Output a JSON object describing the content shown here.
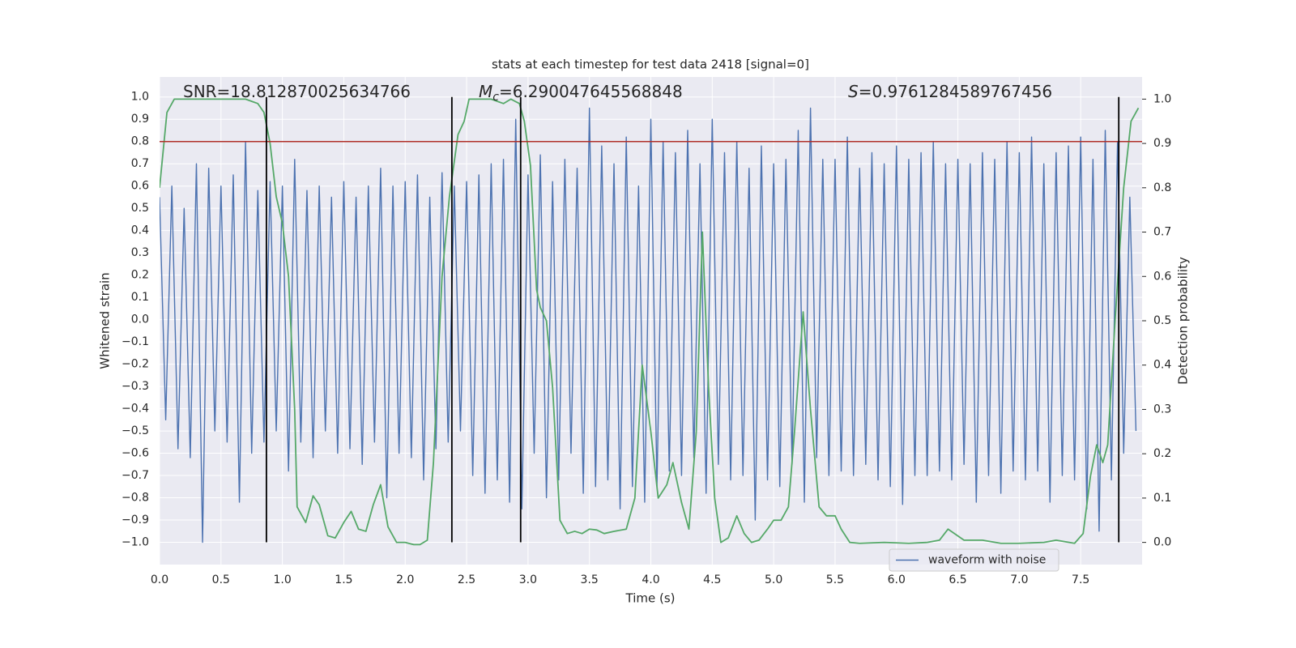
{
  "chart_data": {
    "type": "line",
    "title": "stats at each timestep for test data 2418 [signal=0]",
    "xlabel": "Time (s)",
    "ylabel": "Whitened strain",
    "y2label": "Detection probability",
    "annotations": [
      {
        "text": "SNR=18.812870025634766"
      },
      {
        "symbol": "M",
        "subscript": "c",
        "text": "=6.290047645568848"
      },
      {
        "symbol": "S",
        "text": "=0.9761284589767456"
      }
    ],
    "xlim": [
      0,
      8
    ],
    "ylim": [
      -1.1,
      1.09
    ],
    "y2lim": [
      -0.05,
      1.05
    ],
    "xticks": [
      {
        "value": 0,
        "label": "0.0"
      },
      {
        "value": 0.5,
        "label": "0.5"
      },
      {
        "value": 1,
        "label": "1.0"
      },
      {
        "value": 1.5,
        "label": "1.5"
      },
      {
        "value": 2,
        "label": "2.0"
      },
      {
        "value": 2.5,
        "label": "2.5"
      },
      {
        "value": 3,
        "label": "3.0"
      },
      {
        "value": 3.5,
        "label": "3.5"
      },
      {
        "value": 4,
        "label": "4.0"
      },
      {
        "value": 4.5,
        "label": "4.5"
      },
      {
        "value": 5,
        "label": "5.0"
      },
      {
        "value": 5.5,
        "label": "5.5"
      },
      {
        "value": 6,
        "label": "6.0"
      },
      {
        "value": 6.5,
        "label": "6.5"
      },
      {
        "value": 7,
        "label": "7.0"
      },
      {
        "value": 7.5,
        "label": "7.5"
      }
    ],
    "yticks": [
      {
        "value": -1,
        "label": "−1.0"
      },
      {
        "value": -0.9,
        "label": "−0.9"
      },
      {
        "value": -0.8,
        "label": "−0.8"
      },
      {
        "value": -0.7,
        "label": "−0.7"
      },
      {
        "value": -0.6,
        "label": "−0.6"
      },
      {
        "value": -0.5,
        "label": "−0.5"
      },
      {
        "value": -0.4,
        "label": "−0.4"
      },
      {
        "value": -0.3,
        "label": "−0.3"
      },
      {
        "value": -0.2,
        "label": "−0.2"
      },
      {
        "value": -0.1,
        "label": "−0.1"
      },
      {
        "value": 0,
        "label": "0.0"
      },
      {
        "value": 0.1,
        "label": "0.1"
      },
      {
        "value": 0.2,
        "label": "0.2"
      },
      {
        "value": 0.3,
        "label": "0.3"
      },
      {
        "value": 0.4,
        "label": "0.4"
      },
      {
        "value": 0.5,
        "label": "0.5"
      },
      {
        "value": 0.6,
        "label": "0.6"
      },
      {
        "value": 0.7,
        "label": "0.7"
      },
      {
        "value": 0.8,
        "label": "0.8"
      },
      {
        "value": 0.9,
        "label": "0.9"
      },
      {
        "value": 1,
        "label": "1.0"
      }
    ],
    "y2ticks": [
      {
        "value": 0,
        "label": "0.0"
      },
      {
        "value": 0.1,
        "label": "0.1"
      },
      {
        "value": 0.2,
        "label": "0.2"
      },
      {
        "value": 0.3,
        "label": "0.3"
      },
      {
        "value": 0.4,
        "label": "0.4"
      },
      {
        "value": 0.5,
        "label": "0.5"
      },
      {
        "value": 0.6,
        "label": "0.6"
      },
      {
        "value": 0.7,
        "label": "0.7"
      },
      {
        "value": 0.8,
        "label": "0.8"
      },
      {
        "value": 0.9,
        "label": "0.9"
      },
      {
        "value": 1,
        "label": "1.0"
      }
    ],
    "grid": true,
    "legend": "lower right",
    "hline": {
      "value": 0.8,
      "color": "#b0302a"
    },
    "vlines": {
      "x": [
        0.87,
        2.38,
        2.94,
        7.81
      ],
      "ymin": -1,
      "ymax": 1,
      "color": "#000000"
    },
    "series": [
      {
        "name": "waveform with noise",
        "color": "#4c72b0",
        "x": [
          0,
          0.05,
          0.1,
          0.15,
          0.2,
          0.25,
          0.3,
          0.35,
          0.4,
          0.45,
          0.5,
          0.55,
          0.6,
          0.65,
          0.7,
          0.75,
          0.8,
          0.85,
          0.9,
          0.95,
          1.0,
          1.05,
          1.1,
          1.15,
          1.2,
          1.25,
          1.3,
          1.35,
          1.4,
          1.45,
          1.5,
          1.55,
          1.6,
          1.65,
          1.7,
          1.75,
          1.8,
          1.85,
          1.9,
          1.95,
          2.0,
          2.05,
          2.1,
          2.15,
          2.2,
          2.25,
          2.3,
          2.35,
          2.4,
          2.45,
          2.5,
          2.55,
          2.6,
          2.65,
          2.7,
          2.75,
          2.8,
          2.85,
          2.9,
          2.95,
          3.0,
          3.05,
          3.1,
          3.15,
          3.2,
          3.25,
          3.3,
          3.35,
          3.4,
          3.45,
          3.5,
          3.55,
          3.6,
          3.65,
          3.7,
          3.75,
          3.8,
          3.85,
          3.9,
          3.95,
          4.0,
          4.05,
          4.1,
          4.15,
          4.2,
          4.25,
          4.3,
          4.35,
          4.4,
          4.45,
          4.5,
          4.55,
          4.6,
          4.65,
          4.7,
          4.75,
          4.8,
          4.85,
          4.9,
          4.95,
          5.0,
          5.05,
          5.1,
          5.15,
          5.2,
          5.25,
          5.3,
          5.35,
          5.4,
          5.45,
          5.5,
          5.55,
          5.6,
          5.65,
          5.7,
          5.75,
          5.8,
          5.85,
          5.9,
          5.95,
          6.0,
          6.05,
          6.1,
          6.15,
          6.2,
          6.25,
          6.3,
          6.35,
          6.4,
          6.45,
          6.5,
          6.55,
          6.6,
          6.65,
          6.7,
          6.75,
          6.8,
          6.85,
          6.9,
          6.95,
          7.0,
          7.05,
          7.1,
          7.15,
          7.2,
          7.25,
          7.3,
          7.35,
          7.4,
          7.45,
          7.5,
          7.55,
          7.6,
          7.65,
          7.7,
          7.75,
          7.8,
          7.85,
          7.9,
          7.95
        ],
        "values": [
          0.55,
          -0.45,
          0.6,
          -0.58,
          0.5,
          -0.62,
          0.7,
          -1.0,
          0.68,
          -0.5,
          0.6,
          -0.55,
          0.65,
          -0.82,
          0.8,
          -0.6,
          0.58,
          -0.55,
          0.62,
          -0.5,
          0.6,
          -0.68,
          0.72,
          -0.55,
          0.58,
          -0.62,
          0.6,
          -0.5,
          0.55,
          -0.6,
          0.62,
          -0.58,
          0.55,
          -0.65,
          0.6,
          -0.55,
          0.68,
          -0.8,
          0.6,
          -0.6,
          0.62,
          -0.62,
          0.65,
          -0.72,
          0.55,
          -0.58,
          0.66,
          -0.55,
          0.6,
          -0.5,
          0.62,
          -0.7,
          0.65,
          -0.78,
          0.7,
          -0.72,
          0.72,
          -0.82,
          0.9,
          -0.85,
          0.65,
          -0.6,
          0.74,
          -0.8,
          0.62,
          -0.72,
          0.72,
          -0.6,
          0.68,
          -0.78,
          0.95,
          -0.75,
          0.78,
          -0.72,
          0.7,
          -0.85,
          0.82,
          -0.75,
          0.6,
          -0.82,
          0.9,
          -0.75,
          0.8,
          -0.68,
          0.75,
          -0.7,
          0.85,
          -0.62,
          0.7,
          -0.78,
          0.9,
          -0.65,
          0.75,
          -0.72,
          0.8,
          -0.7,
          0.68,
          -0.9,
          0.78,
          -0.72,
          0.7,
          -0.75,
          0.72,
          -0.65,
          0.85,
          -0.82,
          0.95,
          -0.62,
          0.72,
          -0.7,
          0.72,
          -0.68,
          0.82,
          -0.7,
          0.68,
          -0.65,
          0.75,
          -0.72,
          0.7,
          -0.75,
          0.78,
          -0.83,
          0.72,
          -0.7,
          0.75,
          -0.7,
          0.8,
          -0.68,
          0.7,
          -0.72,
          0.72,
          -0.65,
          0.7,
          -0.82,
          0.75,
          -0.7,
          0.72,
          -0.78,
          0.8,
          -0.68,
          0.75,
          -0.72,
          0.82,
          -0.68,
          0.7,
          -0.82,
          0.75,
          -0.7,
          0.78,
          -0.72,
          0.82,
          -0.85,
          0.72,
          -0.95,
          0.85,
          -0.72,
          0.8,
          -0.6,
          0.55,
          -0.5
        ]
      },
      {
        "color": "#55a868",
        "axis": "y2",
        "x": [
          0,
          0.06,
          0.12,
          0.3,
          0.5,
          0.7,
          0.8,
          0.85,
          0.9,
          0.95,
          1.0,
          1.05,
          1.1,
          1.12,
          1.19,
          1.25,
          1.3,
          1.37,
          1.43,
          1.5,
          1.56,
          1.62,
          1.68,
          1.74,
          1.8,
          1.86,
          1.93,
          2.0,
          2.07,
          2.12,
          2.18,
          2.23,
          2.3,
          2.36,
          2.43,
          2.48,
          2.52,
          2.6,
          2.7,
          2.8,
          2.86,
          2.93,
          2.97,
          3.02,
          3.07,
          3.1,
          3.15,
          3.2,
          3.26,
          3.32,
          3.38,
          3.44,
          3.5,
          3.56,
          3.62,
          3.7,
          3.8,
          3.87,
          3.93,
          4.0,
          4.06,
          4.13,
          4.18,
          4.25,
          4.31,
          4.37,
          4.42,
          4.47,
          4.52,
          4.57,
          4.63,
          4.7,
          4.76,
          4.82,
          4.88,
          4.95,
          5.0,
          5.06,
          5.12,
          5.17,
          5.24,
          5.3,
          5.37,
          5.43,
          5.5,
          5.55,
          5.62,
          5.7,
          5.9,
          6.1,
          6.25,
          6.35,
          6.42,
          6.55,
          6.7,
          6.85,
          7.0,
          7.2,
          7.3,
          7.45,
          7.52,
          7.58,
          7.63,
          7.68,
          7.72,
          7.78,
          7.85,
          7.91,
          7.97
        ],
        "values": [
          0.8,
          0.97,
          1.0,
          1.0,
          1.0,
          1.0,
          0.99,
          0.97,
          0.9,
          0.78,
          0.72,
          0.6,
          0.3,
          0.08,
          0.045,
          0.105,
          0.085,
          0.015,
          0.01,
          0.045,
          0.07,
          0.03,
          0.025,
          0.085,
          0.13,
          0.035,
          0.0,
          0.0,
          -0.005,
          -0.005,
          0.005,
          0.18,
          0.6,
          0.78,
          0.92,
          0.95,
          1.0,
          1.0,
          1.0,
          0.99,
          1.0,
          0.99,
          0.95,
          0.85,
          0.57,
          0.53,
          0.5,
          0.35,
          0.05,
          0.02,
          0.025,
          0.02,
          0.03,
          0.028,
          0.02,
          0.025,
          0.03,
          0.1,
          0.4,
          0.25,
          0.1,
          0.13,
          0.18,
          0.09,
          0.03,
          0.25,
          0.7,
          0.35,
          0.1,
          0.0,
          0.01,
          0.06,
          0.02,
          0.0,
          0.005,
          0.03,
          0.05,
          0.05,
          0.08,
          0.25,
          0.52,
          0.3,
          0.08,
          0.06,
          0.06,
          0.03,
          0.0,
          -0.002,
          0.0,
          -0.002,
          0.0,
          0.005,
          0.03,
          0.005,
          0.005,
          -0.002,
          -0.002,
          0.0,
          0.005,
          -0.002,
          0.02,
          0.15,
          0.22,
          0.18,
          0.22,
          0.5,
          0.8,
          0.95,
          0.98
        ]
      }
    ]
  }
}
